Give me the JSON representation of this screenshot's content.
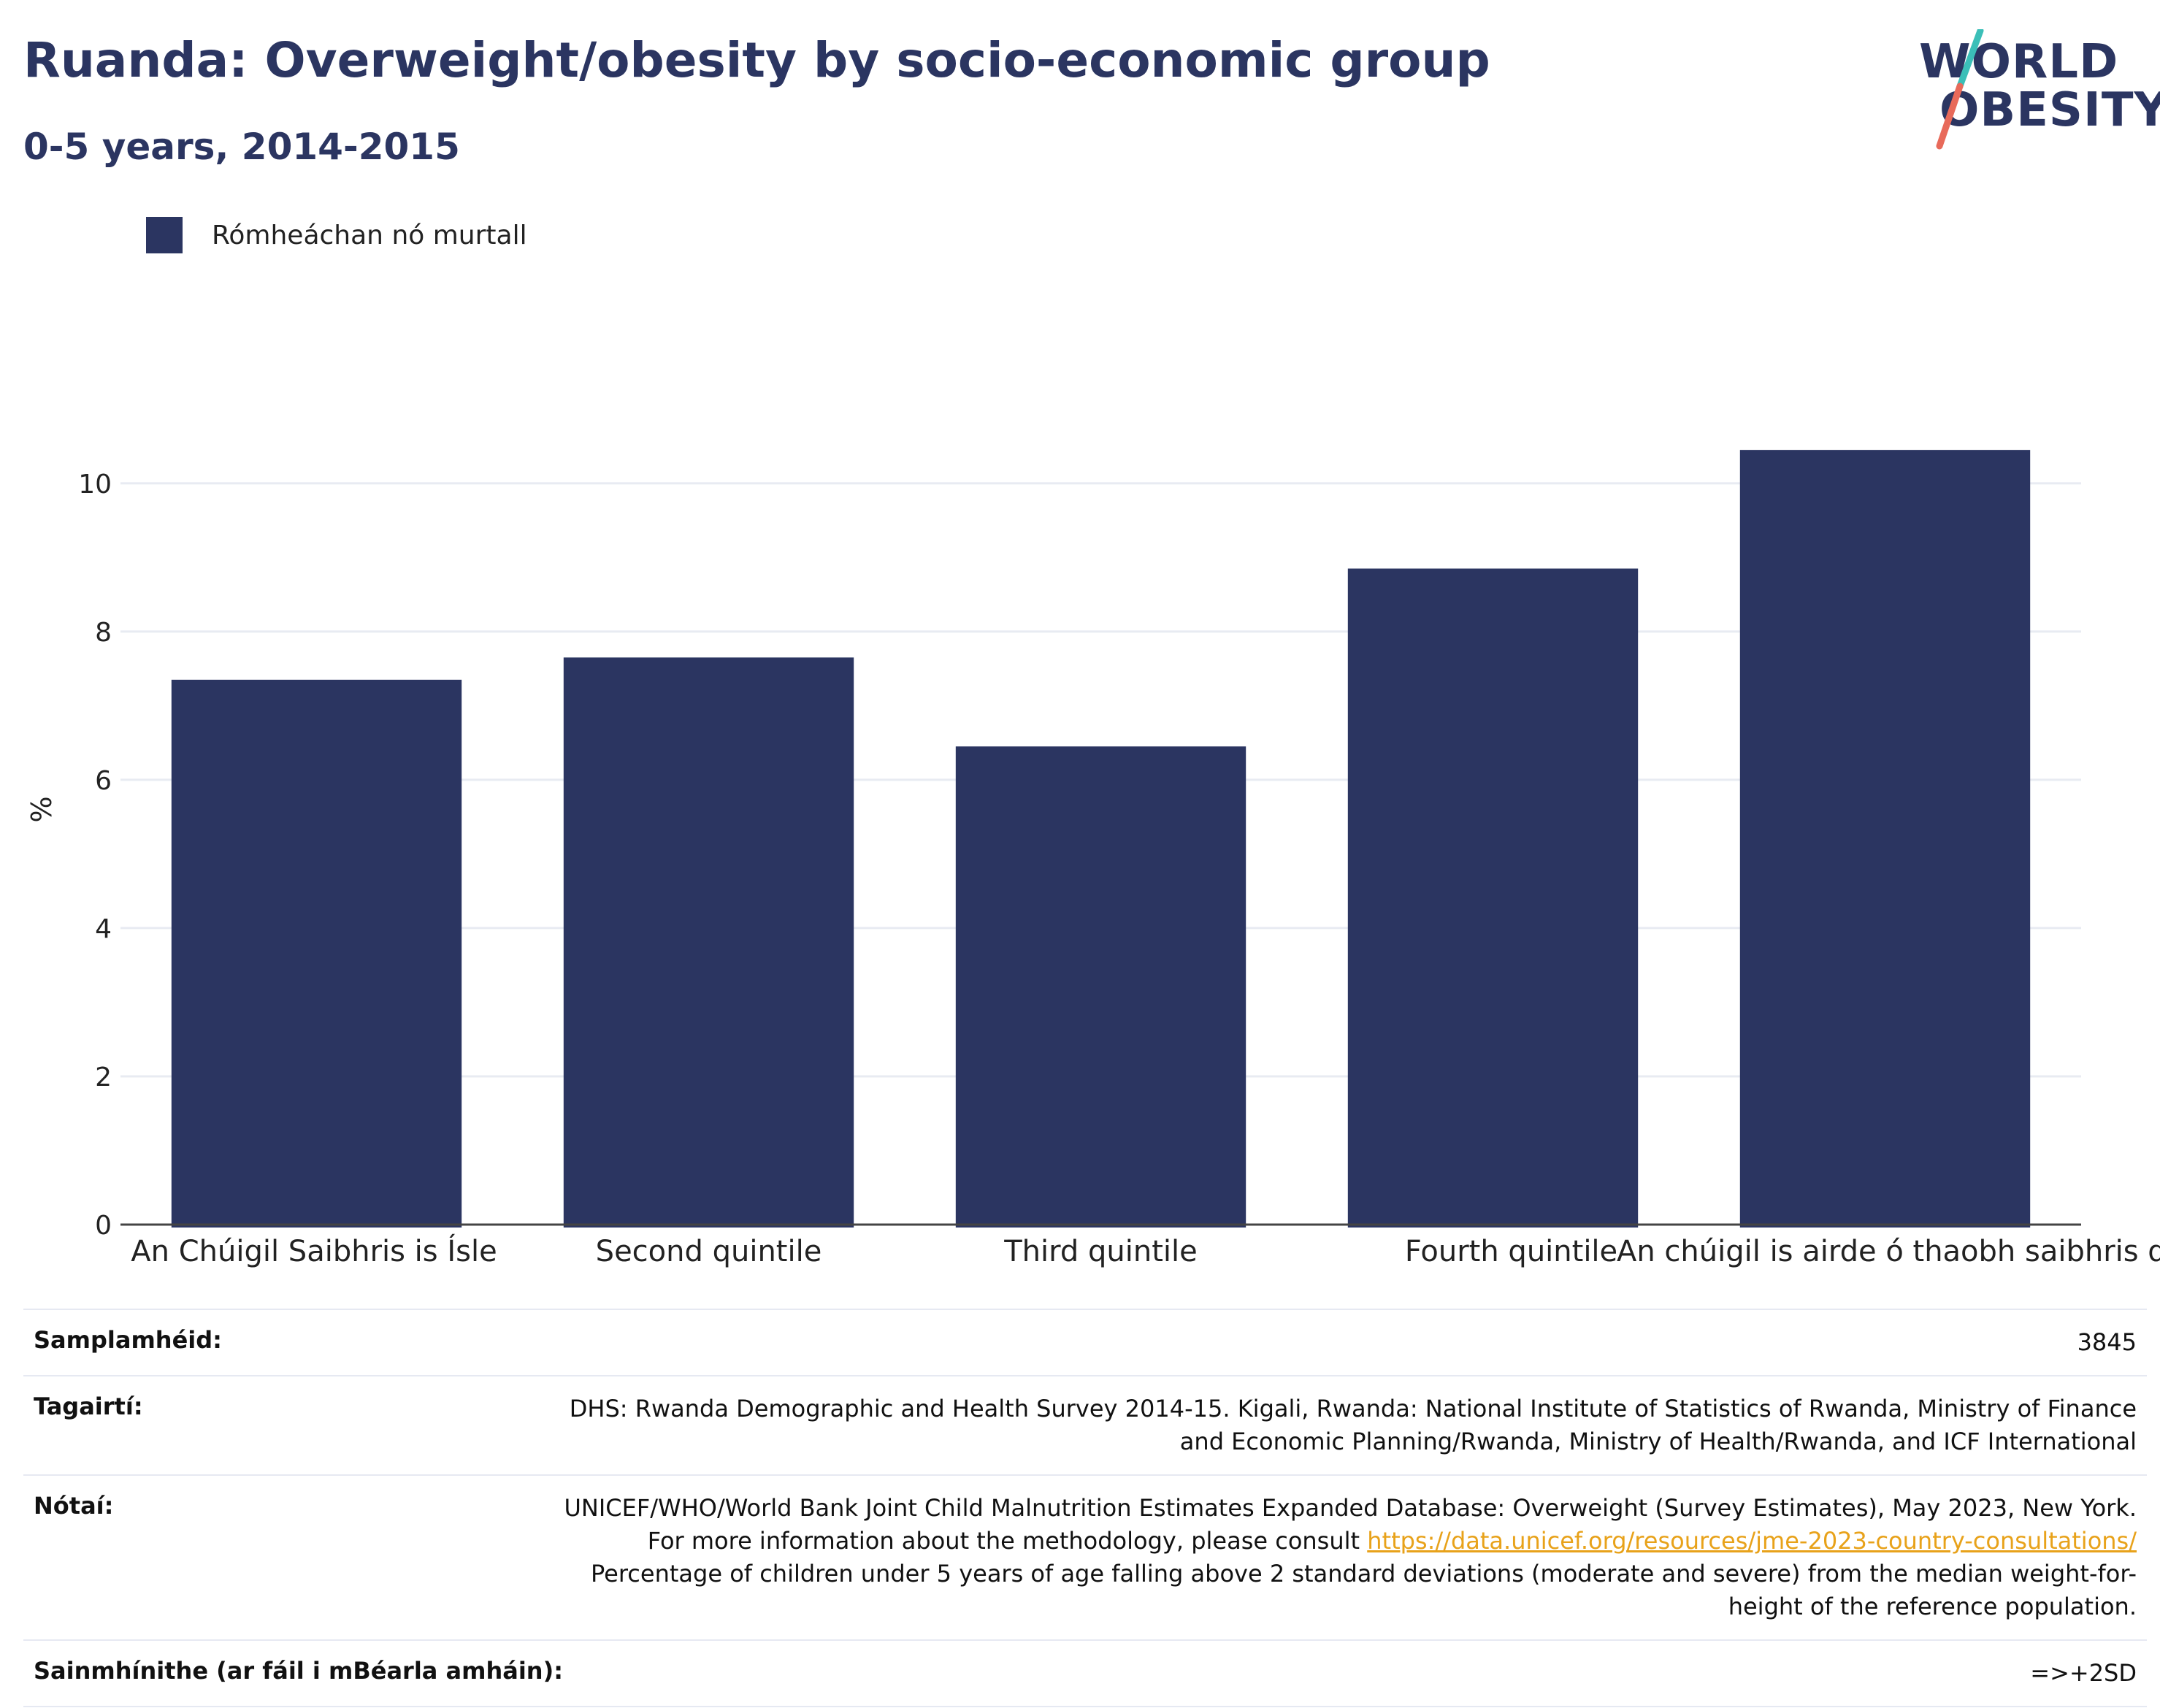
{
  "header": {
    "title": "Ruanda: Overweight/obesity by socio-economic group",
    "subtitle": "0-5 years, 2014-2015"
  },
  "logo": {
    "line1": "WORLD",
    "line2": "OBESITY",
    "colors": {
      "text": "#2b3561",
      "slash_top": "#3bbfb8",
      "slash_bottom": "#e86a5a"
    }
  },
  "legend": {
    "label": "Rómheáchan nó murtall",
    "color": "#2b3561"
  },
  "chart_data": {
    "type": "bar",
    "categories": [
      "An Chúigil Saibhris is Ísle",
      "Second quintile",
      "Third quintile",
      "Fourth quintile",
      "An chúigil is airde ó thaobh saibhris de"
    ],
    "series": [
      {
        "name": "Rómheáchan nó murtall",
        "values": [
          7.35,
          7.65,
          6.45,
          8.85,
          10.45
        ]
      }
    ],
    "ylabel": "%",
    "xlabel": "",
    "ylim": [
      0,
      11.2
    ],
    "yticks": [
      0,
      2,
      4,
      6,
      8,
      10
    ],
    "grid": true,
    "legend_position": "top-left",
    "bar_color": "#2b3561",
    "grid_color": "#e8ebf2"
  },
  "info": {
    "sample_label": "Samplamhéid:",
    "sample_value": "3845",
    "references_label": "Tagairtí:",
    "references_value": "DHS: Rwanda Demographic and Health Survey 2014-15. Kigali, Rwanda: National Institute of Statistics of Rwanda, Ministry of Finance and Economic Planning/Rwanda, Ministry of Health/Rwanda, and ICF International",
    "notes_label": "Nótaí:",
    "notes_before_link": "UNICEF/WHO/World Bank Joint Child Malnutrition Estimates Expanded Database: Overweight (Survey Estimates), May 2023, New York. For more information about the methodology, please consult ",
    "notes_link": "https://data.unicef.org/resources/jme-2023-country-consultations/",
    "notes_after_link": " Percentage of children under 5 years of age falling above 2 standard deviations (moderate and severe) from the median weight-for-height of the reference population.",
    "definitions_label": "Sainmhínithe (ar fáil i mBéarla amháin):",
    "definitions_value": "=>+2SD"
  }
}
